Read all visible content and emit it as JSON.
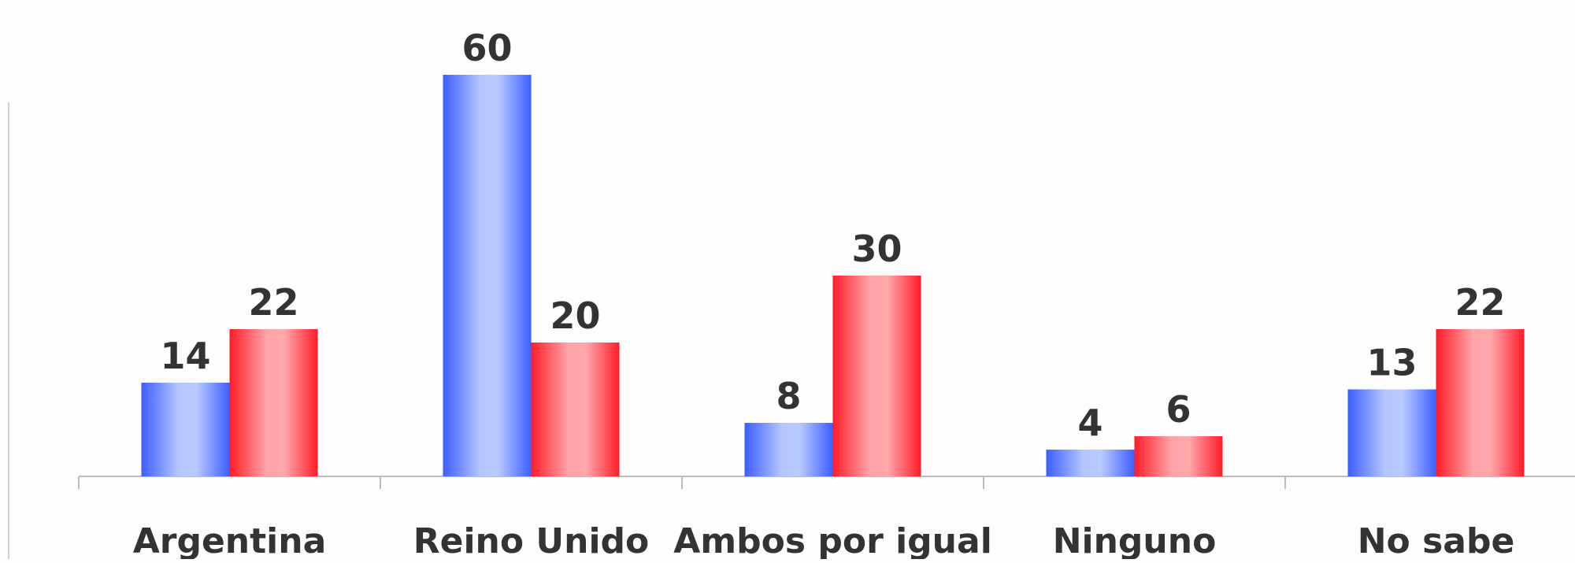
{
  "chart_data": {
    "type": "bar",
    "categories": [
      "Argentina",
      "Reino Unido",
      "Ambos por igual",
      "Ninguno",
      "No sabe"
    ],
    "series": [
      {
        "values": [
          14,
          60,
          8,
          4,
          13
        ],
        "color": "#3a5cff"
      },
      {
        "values": [
          22,
          20,
          30,
          6,
          22
        ],
        "color": "#ff1a26"
      }
    ],
    "title": "",
    "xlabel": "",
    "ylabel": "",
    "ylim": [
      0,
      60
    ],
    "grid": false,
    "legend": "none",
    "data_labels": true
  }
}
